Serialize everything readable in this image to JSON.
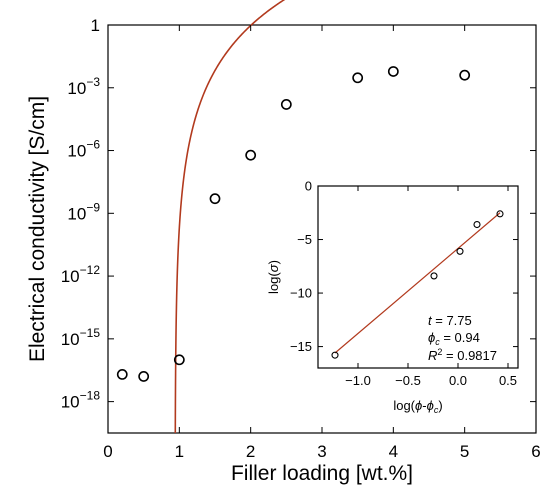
{
  "chart_data": [
    {
      "type": "scatter",
      "xlabel": "Filler loading [wt.%]",
      "ylabel": "Electrical conductivity [S/cm]",
      "xlim": [
        0,
        6
      ],
      "ylim_log10": [
        -19.5,
        0
      ],
      "yscale": "log",
      "x_ticks": [
        0,
        1,
        2,
        3,
        4,
        5,
        6
      ],
      "x_tick_labels": [
        "0",
        "1",
        "2",
        "3",
        "4",
        "5",
        "6"
      ],
      "y_ticks_log10": [
        0,
        -3,
        -6,
        -9,
        -12,
        -15,
        -18
      ],
      "y_tick_labels": [
        {
          "base": "1",
          "exp": ""
        },
        {
          "base": "10",
          "exp": "−3"
        },
        {
          "base": "10",
          "exp": "−6"
        },
        {
          "base": "10",
          "exp": "−9"
        },
        {
          "base": "10",
          "exp": "−12"
        },
        {
          "base": "10",
          "exp": "−15"
        },
        {
          "base": "10",
          "exp": "−18"
        }
      ],
      "points": [
        {
          "x": 0.2,
          "y": 2e-17
        },
        {
          "x": 0.5,
          "y": 1.6e-17
        },
        {
          "x": 1.0,
          "y": 1e-16
        },
        {
          "x": 1.5,
          "y": 5e-09
        },
        {
          "x": 2.0,
          "y": 6e-07
        },
        {
          "x": 2.5,
          "y": 0.00016
        },
        {
          "x": 3.5,
          "y": 0.003
        },
        {
          "x": 4.0,
          "y": 0.006
        },
        {
          "x": 5.0,
          "y": 0.004
        }
      ],
      "fit": {
        "model": "power-law",
        "phi_c": 0.94,
        "t": 7.75,
        "sigma0": 0.6
      }
    },
    {
      "type": "scatter",
      "xlabel": {
        "pre": "log(",
        "phi": "ϕ",
        "mid": "-",
        "phi2": "ϕ",
        "sub": "c",
        "post": ")"
      },
      "ylabel": {
        "pre": "log(",
        "sym": "σ",
        "post": ")"
      },
      "xlim": [
        -1.4,
        0.6
      ],
      "ylim": [
        -17,
        0
      ],
      "x_ticks": [
        -1.0,
        -0.5,
        0.0,
        0.5
      ],
      "x_tick_labels": [
        "−1.0",
        "−0.5",
        "0.0",
        "0.5"
      ],
      "y_ticks": [
        0,
        -5,
        -10,
        -15
      ],
      "y_tick_labels": [
        "0",
        "−5",
        "−10",
        "−15"
      ],
      "points": [
        {
          "x": -1.23,
          "y": -15.8
        },
        {
          "x": -0.24,
          "y": -8.4
        },
        {
          "x": 0.02,
          "y": -6.1
        },
        {
          "x": 0.19,
          "y": -3.6
        },
        {
          "x": 0.42,
          "y": -2.6
        }
      ],
      "fit": {
        "x": [
          -1.23,
          0.42
        ],
        "y": [
          -15.6,
          -2.5
        ]
      },
      "annotations": {
        "t": {
          "sym": "t",
          "val": " = 7.75"
        },
        "phic": {
          "sym": "ϕ",
          "sub": "c",
          "val": " = 0.94"
        },
        "r2": {
          "sym": "R",
          "sup": "2",
          "val": " = 0.9817"
        }
      }
    }
  ]
}
